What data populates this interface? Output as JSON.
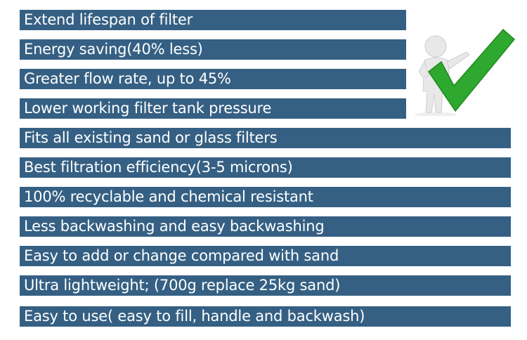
{
  "features": [
    "Extend lifespan of filter",
    "Energy saving(40% less)",
    "Greater flow rate, up to 45%",
    "Lower working filter tank pressure",
    "Fits all existing sand or glass filters",
    "Best filtration efficiency(3-5 microns)",
    "100% recyclable and chemical resistant",
    "Less backwashing and easy backwashing",
    "Easy to add or change compared with sand",
    "Ultra lightweight; (700g replace 25kg sand)",
    "Easy to use( easy to fill, handle and backwash)"
  ],
  "colors": {
    "bar": "#356083",
    "text": "#ffffff",
    "check": "#2ea82e"
  },
  "illustration": "person-with-green-checkmark-icon"
}
